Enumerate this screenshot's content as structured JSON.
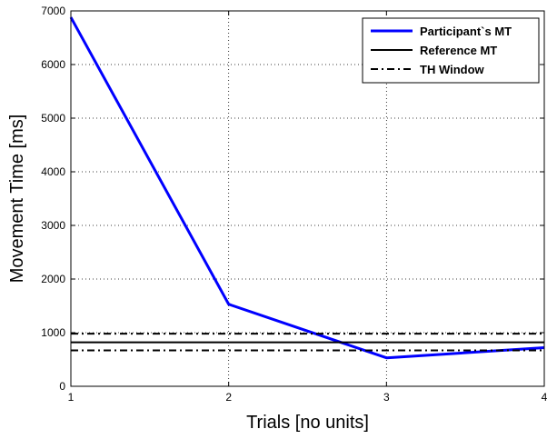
{
  "chart_data": {
    "type": "line",
    "title": "",
    "xlabel": "Trials [no units]",
    "ylabel": "Movement Time [ms]",
    "xlim": [
      1,
      4
    ],
    "ylim": [
      0,
      7000
    ],
    "xticks": [
      1,
      2,
      3,
      4
    ],
    "yticks": [
      0,
      1000,
      2000,
      3000,
      4000,
      5000,
      6000,
      7000
    ],
    "grid": true,
    "legend_position": "top-right",
    "series": [
      {
        "name": "Participant`s MT",
        "style": "solid",
        "color": "#0000ff",
        "x": [
          1,
          2,
          3,
          4
        ],
        "y": [
          6880,
          1530,
          530,
          720
        ]
      },
      {
        "name": "Reference MT",
        "style": "solid",
        "color": "#000000",
        "x": [
          1,
          4
        ],
        "y": [
          820,
          820
        ]
      },
      {
        "name": "TH Window",
        "style": "dashdot",
        "color": "#000000",
        "x": [
          1,
          4
        ],
        "y": [
          980,
          980
        ]
      },
      {
        "name": "TH Window",
        "style": "dashdot",
        "color": "#000000",
        "x": [
          1,
          4
        ],
        "y": [
          670,
          670
        ],
        "hide_in_legend": true
      }
    ]
  }
}
